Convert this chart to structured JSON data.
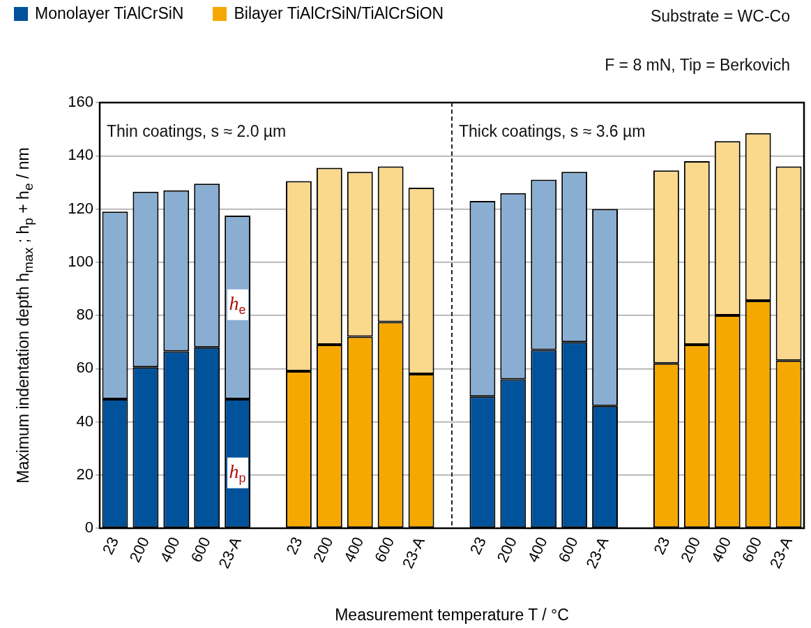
{
  "chart_data": {
    "type": "bar",
    "stacked": true,
    "xlabel": "Measurement temperature T / °C",
    "ylabel": "Maximum indentation depth h$_{max}$ ; h$_{p}$ + h$_{e}$ / nm",
    "categories": [
      "23",
      "200",
      "400",
      "600",
      "23-A",
      null,
      "23",
      "200",
      "400",
      "600",
      "23-A",
      null,
      "23",
      "200",
      "400",
      "600",
      "23-A",
      null,
      "23",
      "200",
      "400",
      "600",
      "23-A"
    ],
    "series": [
      {
        "name": "Monolayer TiAlCrSiN",
        "color": "#00529b",
        "values": [
          48.5,
          60.5,
          66.5,
          68,
          48.5,
          null,
          null,
          null,
          null,
          null,
          null,
          null,
          49.5,
          56,
          67,
          70,
          46,
          null,
          null,
          null,
          null,
          null,
          null
        ]
      },
      {
        "color": "#8aaed2",
        "values": [
          70.5,
          66,
          60.5,
          61.5,
          69,
          null,
          null,
          null,
          null,
          null,
          null,
          null,
          73.5,
          70,
          64,
          64,
          74,
          null,
          null,
          null,
          null,
          null,
          null
        ]
      },
      {
        "name": "Bilayer TiAlCrSiN/TiAlCrSiON",
        "color": "#f5a800",
        "values": [
          null,
          null,
          null,
          null,
          null,
          null,
          59,
          69,
          72,
          77.5,
          58,
          null,
          null,
          null,
          null,
          null,
          null,
          null,
          62,
          69,
          80,
          85.5,
          63
        ]
      },
      {
        "color": "#fad88c",
        "values": [
          null,
          null,
          null,
          null,
          null,
          null,
          71.5,
          66.5,
          62,
          58.5,
          70,
          null,
          null,
          null,
          null,
          null,
          null,
          null,
          72.5,
          69,
          65.5,
          63,
          73
        ]
      }
    ],
    "ylim": [
      0,
      160
    ],
    "yticks": [
      0,
      20,
      40,
      60,
      80,
      100,
      120,
      140,
      160
    ],
    "grid": "y",
    "legend": "top left",
    "annotations": [
      "Substrate = WC-Co",
      "F = 8 mN, Tip = Berkovich",
      "Thin coatings, s ≈ 2.0 µm",
      "Thick coatings, s ≈ 3.6 µm",
      "h$_{e}$",
      "h$_{p}$"
    ]
  }
}
